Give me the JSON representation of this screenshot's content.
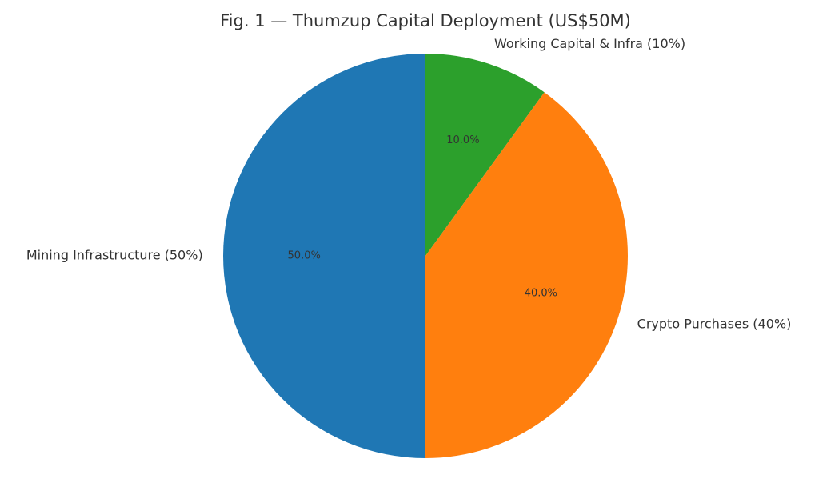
{
  "chart_data": {
    "type": "pie",
    "title": "Fig. 1 — Thumzup Capital Deployment (US$50M)",
    "slices": [
      {
        "label": "Working Capital & Infra (10%)",
        "value": 10,
        "pct_label": "10.0%",
        "color": "#2ca02c"
      },
      {
        "label": "Crypto Purchases (40%)",
        "value": 40,
        "pct_label": "40.0%",
        "color": "#ff7f0e"
      },
      {
        "label": "Mining Infrastructure (50%)",
        "value": 50,
        "pct_label": "50.0%",
        "color": "#1f77b4"
      }
    ],
    "start_angle": "top",
    "direction": "clockwise"
  }
}
